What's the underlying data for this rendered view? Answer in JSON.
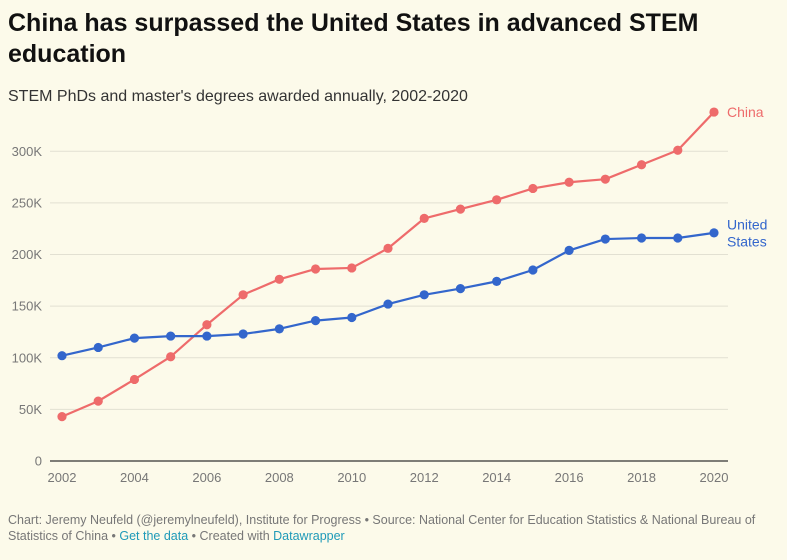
{
  "header": {
    "title": "China has surpassed the United States in advanced STEM education",
    "subtitle": "STEM PhDs and master's degrees awarded annually, 2002-2020"
  },
  "footer": {
    "source_text": "Chart: Jeremy Neufeld (@jeremylneufeld), Institute for Progress • Source: National Center for Education Statistics & National Bureau of Statistics of China • ",
    "get_data_link": "Get the data",
    "separator": " • Created with ",
    "datawrapper_link": "Datawrapper"
  },
  "chart_data": {
    "type": "line",
    "title": "China has surpassed the United States in advanced STEM education",
    "subtitle": "STEM PhDs and master's degrees awarded annually, 2002-2020",
    "xlabel": "",
    "ylabel": "",
    "x": [
      2002,
      2003,
      2004,
      2005,
      2006,
      2007,
      2008,
      2009,
      2010,
      2011,
      2012,
      2013,
      2014,
      2015,
      2016,
      2017,
      2018,
      2019,
      2020
    ],
    "xlim": [
      2002,
      2020
    ],
    "ylim": [
      0,
      340000
    ],
    "x_ticks": [
      2002,
      2004,
      2006,
      2008,
      2010,
      2012,
      2014,
      2016,
      2018,
      2020
    ],
    "x_tick_labels": [
      "2002",
      "2004",
      "2006",
      "2008",
      "2010",
      "2012",
      "2014",
      "2016",
      "2018",
      "2020"
    ],
    "y_ticks": [
      0,
      50000,
      100000,
      150000,
      200000,
      250000,
      300000
    ],
    "y_tick_labels": [
      "0",
      "50K",
      "100K",
      "150K",
      "200K",
      "250K",
      "300K"
    ],
    "grid": true,
    "legend": "direct labels at line ends",
    "series": [
      {
        "name": "China",
        "label_lines": [
          "China"
        ],
        "color": "#ee6b6b",
        "values": [
          43000,
          58000,
          79000,
          101000,
          132000,
          161000,
          176000,
          186000,
          187000,
          206000,
          235000,
          244000,
          253000,
          264000,
          270000,
          273000,
          287000,
          301000,
          338000
        ]
      },
      {
        "name": "United States",
        "label_lines": [
          "United",
          "States"
        ],
        "color": "#3366cc",
        "values": [
          102000,
          110000,
          119000,
          121000,
          121000,
          123000,
          128000,
          136000,
          139000,
          152000,
          161000,
          167000,
          174000,
          185000,
          204000,
          215000,
          216000,
          216000,
          221000
        ]
      }
    ]
  }
}
